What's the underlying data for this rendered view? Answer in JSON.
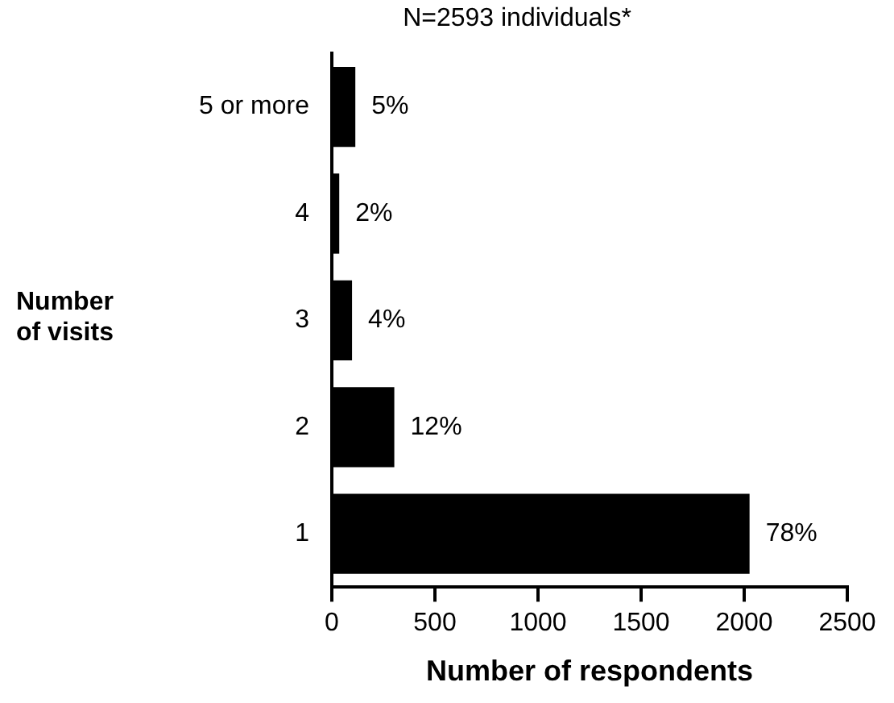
{
  "chart_data": {
    "type": "bar",
    "orientation": "horizontal",
    "title": "N=2593 individuals*",
    "xlabel": "Number of respondents",
    "ylabel": "Number of visits",
    "categories": [
      "5 or more",
      "4",
      "3",
      "2",
      "1"
    ],
    "values": [
      114,
      36,
      98,
      303,
      2026
    ],
    "color": "#000000",
    "annotations": [
      {
        "text": "5%",
        "x": 114,
        "y": "5 or more"
      },
      {
        "text": "2%",
        "x": 36,
        "y": "4"
      },
      {
        "text": "4%",
        "x": 98,
        "y": "3"
      },
      {
        "text": "12%",
        "x": 303,
        "y": "2"
      },
      {
        "text": "78%",
        "x": 2026,
        "y": "1"
      }
    ],
    "xlim": [
      0,
      2500
    ],
    "xticks": [
      0,
      500,
      1000,
      1500,
      2000,
      2500
    ],
    "grid": false,
    "legend": false
  }
}
